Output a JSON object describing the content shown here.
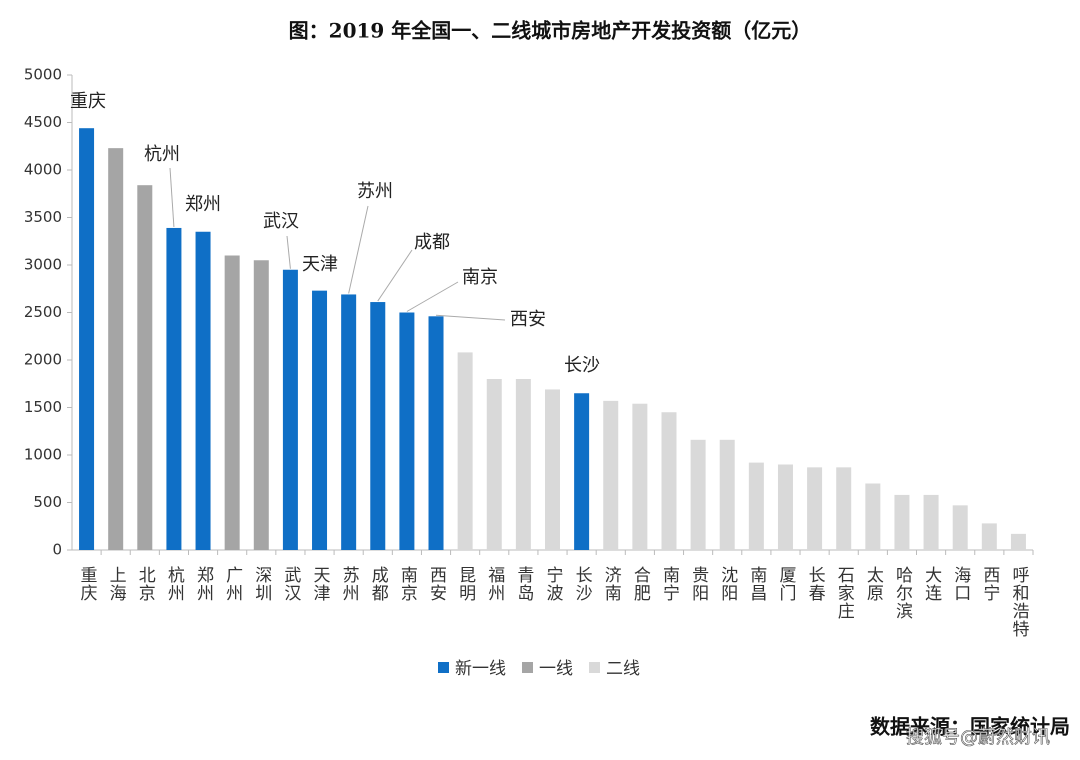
{
  "chart_data": {
    "type": "bar",
    "title": "图：2019 年全国一、二线城市房地产开发投资额（亿元）",
    "categories": [
      "重庆",
      "上海",
      "北京",
      "杭州",
      "郑州",
      "广州",
      "深圳",
      "武汉",
      "天津",
      "苏州",
      "成都",
      "南京",
      "西安",
      "昆明",
      "福州",
      "青岛",
      "宁波",
      "长沙",
      "济南",
      "合肥",
      "南宁",
      "贵阳",
      "沈阳",
      "南昌",
      "厦门",
      "长春",
      "石家庄",
      "太原",
      "哈尔滨",
      "大连",
      "海口",
      "西宁",
      "呼和浩特"
    ],
    "series": [
      {
        "name": "新一线",
        "color": "#0f6fc6",
        "values": [
          4440,
          null,
          null,
          3390,
          3350,
          null,
          null,
          2950,
          2730,
          2690,
          2610,
          2500,
          2460,
          null,
          null,
          null,
          null,
          1650,
          null,
          null,
          null,
          null,
          null,
          null,
          null,
          null,
          null,
          null,
          null,
          null,
          null,
          null,
          null
        ]
      },
      {
        "name": "一线",
        "color": "#a5a5a5",
        "values": [
          null,
          4230,
          3840,
          null,
          null,
          3100,
          3050,
          null,
          null,
          null,
          null,
          null,
          null,
          null,
          null,
          null,
          null,
          null,
          null,
          null,
          null,
          null,
          null,
          null,
          null,
          null,
          null,
          null,
          null,
          null,
          null,
          null,
          null
        ]
      },
      {
        "name": "二线",
        "color": "#d9d9d9",
        "values": [
          null,
          null,
          null,
          null,
          null,
          null,
          null,
          null,
          null,
          null,
          null,
          null,
          null,
          2080,
          1800,
          1800,
          1690,
          null,
          1570,
          1540,
          1450,
          1160,
          1160,
          920,
          900,
          870,
          870,
          700,
          580,
          580,
          470,
          280,
          170
        ]
      }
    ],
    "ylim": [
      0,
      5000
    ],
    "yticks": [
      0,
      500,
      1000,
      1500,
      2000,
      2500,
      3000,
      3500,
      4000,
      4500,
      5000
    ],
    "grid": false,
    "legend": "bottom",
    "source": "数据来源：国家统计局",
    "watermark": "搜狐号@蔚然财讯"
  }
}
